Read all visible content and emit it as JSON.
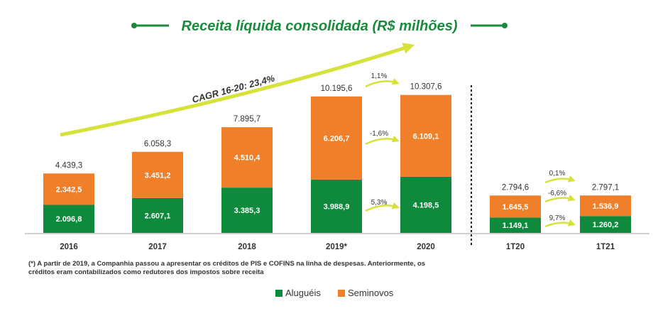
{
  "title": "Receita líquida consolidada (R$ milhões)",
  "cagr_label": "CAGR 16-20: 23,4%",
  "footnote_line1": "(*) A partir de 2019, a Companhia passou a apresentar os créditos de PIS e COFINS na linha de despesas. Anteriormente, os",
  "footnote_line2": "créditos eram contabilizados como redutores dos impostos sobre receita",
  "colors": {
    "green": "#0f8a3c",
    "orange": "#f07f2a",
    "title": "#1a8a3c",
    "arrow": "#d6e23a"
  },
  "chart_data": {
    "type": "bar",
    "stacked": true,
    "categories": [
      "2016",
      "2017",
      "2018",
      "2019*",
      "2020",
      "1T20",
      "1T21"
    ],
    "series": [
      {
        "name": "Aluguéis",
        "values": [
          2096.8,
          2607.1,
          3385.3,
          3988.9,
          4198.5,
          1149.1,
          1260.2
        ],
        "labels": [
          "2.096,8",
          "2.607,1",
          "3.385,3",
          "3.988,9",
          "4.198,5",
          "1.149,1",
          "1.260,2"
        ]
      },
      {
        "name": "Seminovos",
        "values": [
          2342.5,
          3451.2,
          4510.4,
          6206.7,
          6109.1,
          1645.5,
          1536.9
        ],
        "labels": [
          "2.342,5",
          "3.451,2",
          "4.510,4",
          "6.206,7",
          "6.109,1",
          "1.645,5",
          "1.536,9"
        ]
      }
    ],
    "totals": [
      4439.3,
      6058.3,
      7895.7,
      10195.6,
      10307.6,
      2794.6,
      2797.1
    ],
    "total_labels": [
      "4.439,3",
      "6.058,3",
      "7.895,7",
      "10.195,6",
      "10.307,6",
      "2.794,6",
      "2.797,1"
    ],
    "growth_annual": {
      "total": "1,1%",
      "seminovos": "-1,6%",
      "alugueis": "5,3%"
    },
    "growth_quarterly": {
      "total": "0,1%",
      "seminovos": "-6,6%",
      "alugueis": "9,7%"
    },
    "legend_position": "bottom-center",
    "grid": false
  }
}
